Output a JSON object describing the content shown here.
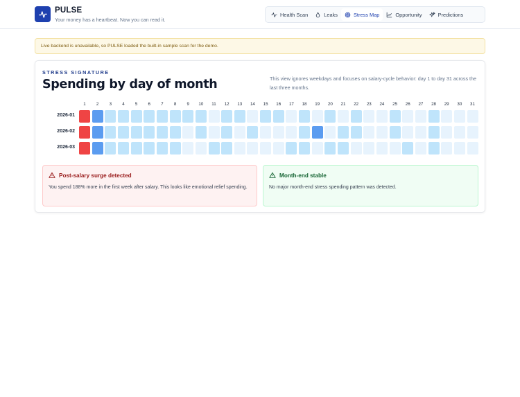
{
  "app": {
    "name": "PULSE",
    "tagline": "Your money has a heartbeat. Now you can read it."
  },
  "nav": {
    "items": [
      {
        "label": "Health Scan",
        "icon": "pulse-icon",
        "active": false
      },
      {
        "label": "Leaks",
        "icon": "leak-icon",
        "active": false
      },
      {
        "label": "Stress Map",
        "icon": "target-icon",
        "active": true
      },
      {
        "label": "Opportunity",
        "icon": "chart-icon",
        "active": false
      },
      {
        "label": "Predictions",
        "icon": "sparkle-icon",
        "active": false
      }
    ]
  },
  "alert": {
    "text": "Live backend is unavailable, so PULSE loaded the built-in sample scan for the demo."
  },
  "card": {
    "eyebrow": "STRESS SIGNATURE",
    "title": "Spending by day of month",
    "description": "This view ignores weekdays and focuses on salary-cycle behavior: day 1 to day 31 across the last three months."
  },
  "heatmap": {
    "days": [
      "1",
      "2",
      "3",
      "4",
      "5",
      "6",
      "7",
      "8",
      "9",
      "10",
      "11",
      "12",
      "13",
      "14",
      "15",
      "16",
      "17",
      "18",
      "19",
      "20",
      "21",
      "22",
      "23",
      "24",
      "25",
      "26",
      "27",
      "28",
      "29",
      "30",
      "31"
    ],
    "levels": {
      "0": "#e7f3fd",
      "1": "#bfe4fb",
      "2": "#5b9cf0",
      "3": "#ef4444"
    },
    "rows": [
      {
        "month": "2026-01",
        "values": [
          3,
          2,
          1,
          1,
          1,
          1,
          1,
          1,
          1,
          1,
          0,
          1,
          1,
          0,
          1,
          1,
          0,
          1,
          0,
          1,
          0,
          1,
          0,
          0,
          1,
          0,
          0,
          1,
          0,
          0,
          0
        ]
      },
      {
        "month": "2026-02",
        "values": [
          3,
          2,
          1,
          1,
          1,
          1,
          1,
          1,
          0,
          1,
          0,
          1,
          0,
          1,
          0,
          0,
          0,
          1,
          2,
          0,
          1,
          1,
          0,
          0,
          1,
          0,
          0,
          1,
          0,
          0,
          0
        ]
      },
      {
        "month": "2026-03",
        "values": [
          3,
          2,
          1,
          1,
          1,
          1,
          1,
          1,
          0,
          0,
          1,
          1,
          0,
          0,
          0,
          0,
          1,
          1,
          0,
          1,
          1,
          0,
          0,
          0,
          0,
          1,
          0,
          1,
          0,
          0,
          0
        ]
      }
    ]
  },
  "insights": {
    "warn": {
      "title": "Post-salary surge detected",
      "body": "You spend 188% more in the first week after salary. This looks like emotional relief spending."
    },
    "ok": {
      "title": "Month-end stable",
      "body": "No major month-end stress spending pattern was detected."
    }
  }
}
